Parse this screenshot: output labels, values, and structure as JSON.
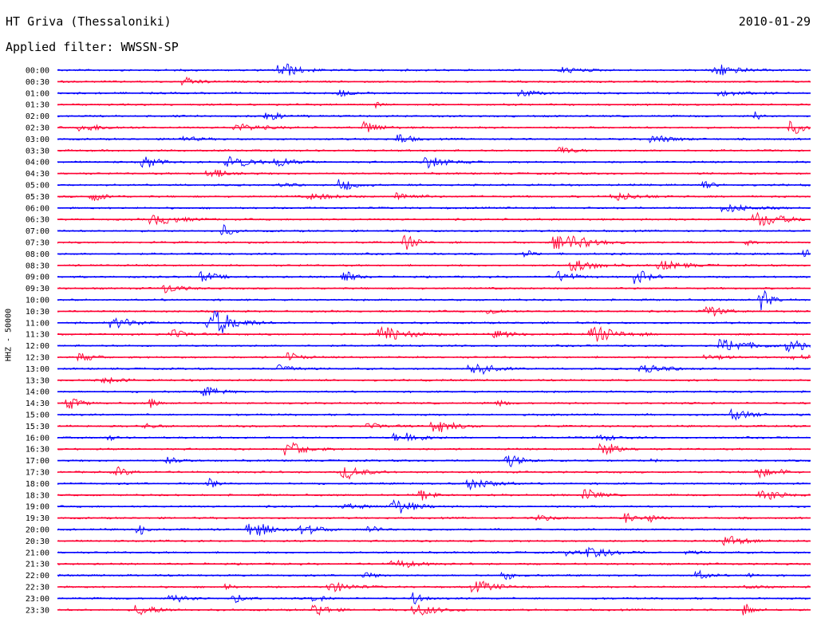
{
  "header": {
    "station": "HT Griva (Thessaloniki)",
    "date": "2010-01-29",
    "filter_label": "Applied filter: WWSSN-SP"
  },
  "side_label": "HHZ - 50000",
  "colors": {
    "trace_a": "#0000ff",
    "trace_b": "#ff0033",
    "text": "#000000"
  },
  "chart_data": {
    "type": "line",
    "title": "HT Griva (Thessaloniki)",
    "subtitle": "Applied filter: WWSSN-SP",
    "xlabel": "",
    "ylabel": "HHZ - 50000",
    "grid": false,
    "legend": "none",
    "row_labels": [
      "00:00",
      "00:30",
      "01:00",
      "01:30",
      "02:00",
      "02:30",
      "03:00",
      "03:30",
      "04:00",
      "04:30",
      "05:00",
      "05:30",
      "06:00",
      "06:30",
      "07:00",
      "07:30",
      "08:00",
      "08:30",
      "09:00",
      "09:30",
      "10:00",
      "10:30",
      "11:00",
      "11:30",
      "12:00",
      "12:30",
      "13:00",
      "13:30",
      "14:00",
      "14:30",
      "15:00",
      "15:30",
      "16:00",
      "16:30",
      "17:00",
      "17:30",
      "18:00",
      "18:30",
      "19:00",
      "19:30",
      "20:00",
      "20:30",
      "21:00",
      "21:30",
      "22:00",
      "22:30",
      "23:00",
      "23:30"
    ],
    "row_colors": [
      "blue",
      "red"
    ]
  }
}
